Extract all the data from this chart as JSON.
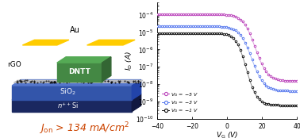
{
  "vg_range": [
    -40,
    40
  ],
  "ylim": [
    1e-10,
    0.0005
  ],
  "curves": [
    {
      "vd": -5,
      "color": "#bb44bb",
      "on_current": 0.00011,
      "off_current": 1.5e-08,
      "threshold": 16,
      "slope": 3.5
    },
    {
      "vd": -3,
      "color": "#5577ee",
      "on_current": 2.2e-05,
      "off_current": 4e-09,
      "threshold": 14,
      "slope": 3.5
    },
    {
      "vd": -1,
      "color": "#111111",
      "on_current": 9e-06,
      "off_current": 6e-10,
      "threshold": 11,
      "slope": 3.0
    }
  ],
  "xlabel": "$V_{\\mathrm{G}}$ (V)",
  "ylabel": "$I_{\\mathrm{D}}$ (A)",
  "xticks": [
    -40,
    -20,
    0,
    20,
    40
  ],
  "legend_labels": [
    "$V_{\\mathrm{D}}$ = −5 V",
    "$V_{\\mathrm{D}}$ = −3 V",
    "$V_{\\mathrm{D}}$ = −1 V"
  ],
  "legend_colors": [
    "#bb44bb",
    "#5577ee",
    "#111111"
  ],
  "annotation_text": "$J_{\\mathrm{on}}$ > 134 mA/cm$^2$",
  "annotation_color": "#cc4400",
  "background_color": "#ffffff",
  "schematic": {
    "sio2_top_color": "#5577cc",
    "sio2_side_color": "#3355aa",
    "sio2_dark_color": "#2244aa",
    "nsi_top_color": "#2a3a80",
    "nsi_side_color": "#1a2860",
    "nsi_dark_color": "#111840",
    "dntt_front_color": "#448844",
    "dntt_top_color": "#55aa55",
    "dntt_side_color": "#336633",
    "au_color": "#ffcc00",
    "rgo_color": "#aaaaaa"
  }
}
